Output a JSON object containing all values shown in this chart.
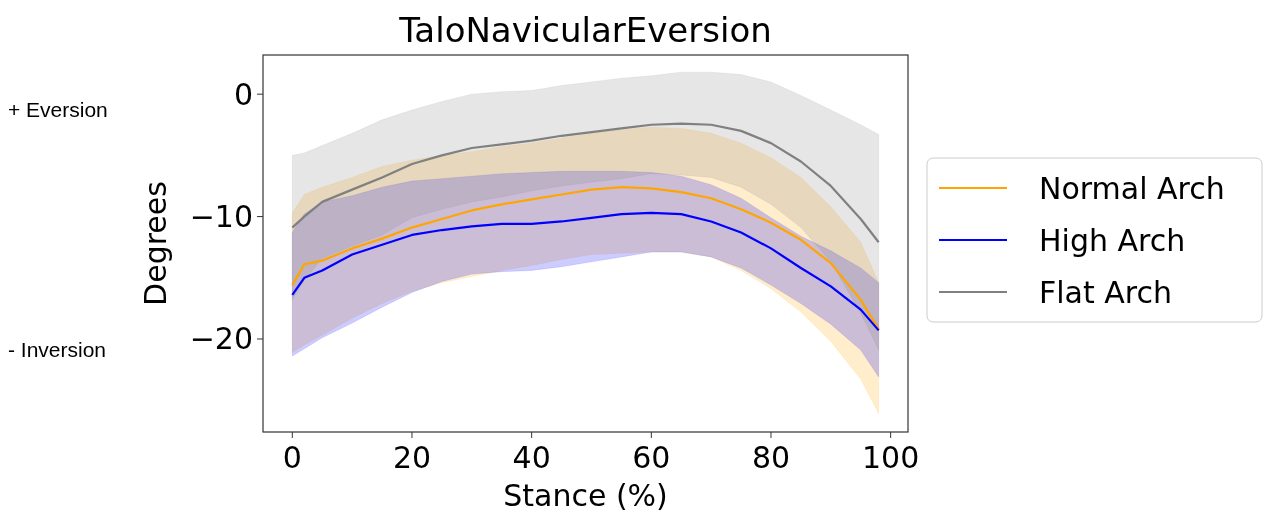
{
  "chart_data": {
    "type": "line",
    "title": "TaloNavicularEversion",
    "xlabel": "Stance (%)",
    "ylabel": "Degrees",
    "annotations": [
      "+ Eversion",
      "- Inversion"
    ],
    "x": [
      0,
      2,
      5,
      10,
      15,
      20,
      25,
      30,
      35,
      40,
      45,
      50,
      55,
      60,
      65,
      70,
      75,
      80,
      85,
      90,
      95,
      98
    ],
    "series": [
      {
        "name": "Normal Arch",
        "color": "#ffa500",
        "values": [
          -15.6,
          -13.9,
          -13.6,
          -12.6,
          -11.8,
          -10.9,
          -10.2,
          -9.5,
          -9.0,
          -8.6,
          -8.2,
          -7.8,
          -7.6,
          -7.7,
          -8.0,
          -8.5,
          -9.4,
          -10.5,
          -11.9,
          -13.8,
          -16.8,
          -19.2
        ],
        "upper": [
          -9.7,
          -8.2,
          -7.6,
          -6.8,
          -5.9,
          -5.4,
          -5.0,
          -4.7,
          -4.3,
          -4.0,
          -3.6,
          -3.2,
          -2.9,
          -2.7,
          -2.8,
          -3.2,
          -4.0,
          -5.2,
          -6.8,
          -9.2,
          -12.1,
          -15.4
        ],
        "lower": [
          -21.1,
          -20.5,
          -19.7,
          -18.3,
          -17.1,
          -16.1,
          -15.4,
          -14.9,
          -14.4,
          -14.0,
          -13.5,
          -13.1,
          -13.0,
          -12.9,
          -12.9,
          -13.3,
          -14.4,
          -15.9,
          -17.8,
          -20.2,
          -23.3,
          -26.1
        ]
      },
      {
        "name": "High Arch",
        "color": "#0000ff",
        "values": [
          -16.4,
          -15.0,
          -14.4,
          -13.1,
          -12.3,
          -11.5,
          -11.1,
          -10.8,
          -10.6,
          -10.6,
          -10.4,
          -10.1,
          -9.8,
          -9.7,
          -9.8,
          -10.4,
          -11.3,
          -12.6,
          -14.2,
          -15.7,
          -17.6,
          -19.3
        ],
        "upper": [
          -11.3,
          -9.8,
          -8.8,
          -8.3,
          -7.6,
          -7.1,
          -6.9,
          -6.7,
          -6.5,
          -6.4,
          -6.3,
          -6.3,
          -6.3,
          -6.4,
          -6.7,
          -7.4,
          -8.5,
          -10.1,
          -11.6,
          -12.8,
          -14.2,
          -15.4
        ],
        "lower": [
          -21.4,
          -20.8,
          -19.9,
          -18.7,
          -17.4,
          -16.2,
          -15.3,
          -14.7,
          -14.5,
          -14.4,
          -14.1,
          -13.7,
          -13.3,
          -12.9,
          -12.9,
          -13.3,
          -14.2,
          -15.6,
          -17.1,
          -18.8,
          -20.9,
          -23.1
        ]
      },
      {
        "name": "Flat Arch",
        "color": "#808080",
        "values": [
          -10.9,
          -10.0,
          -8.8,
          -7.8,
          -6.8,
          -5.7,
          -5.0,
          -4.4,
          -4.1,
          -3.8,
          -3.4,
          -3.1,
          -2.8,
          -2.5,
          -2.4,
          -2.5,
          -3.0,
          -4.0,
          -5.5,
          -7.5,
          -10.2,
          -12.1
        ],
        "upper": [
          -5.0,
          -4.8,
          -4.2,
          -3.2,
          -2.1,
          -1.3,
          -0.6,
          0.0,
          0.2,
          0.3,
          0.7,
          1.0,
          1.3,
          1.5,
          1.8,
          1.8,
          1.6,
          1.0,
          -0.1,
          -1.3,
          -2.5,
          -3.3
        ],
        "lower": [
          -16.8,
          -15.2,
          -13.4,
          -12.4,
          -11.5,
          -10.1,
          -9.4,
          -8.8,
          -8.4,
          -7.9,
          -7.5,
          -7.2,
          -6.9,
          -6.5,
          -6.6,
          -6.8,
          -7.6,
          -9.0,
          -10.9,
          -13.7,
          -17.9,
          -20.9
        ]
      }
    ],
    "xlim": [
      -4.9,
      102.9
    ],
    "xticks": [
      0,
      20,
      40,
      60,
      80,
      100
    ],
    "ylim": [
      -27.6,
      3.2
    ],
    "yticks": [
      {
        "value": 0,
        "label": "0"
      },
      {
        "value": -10,
        "label": "−10"
      },
      {
        "value": -20,
        "label": "−20"
      }
    ],
    "grid": false,
    "legend": "right",
    "marker": "none",
    "line_style": "solid"
  }
}
